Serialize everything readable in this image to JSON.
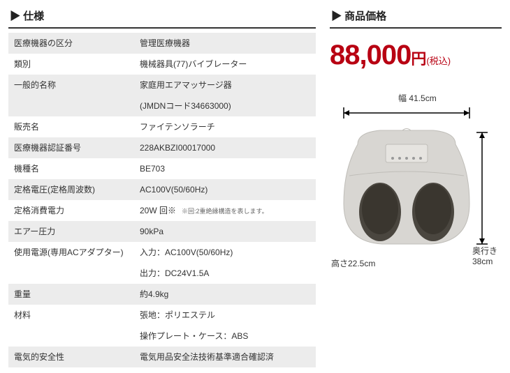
{
  "spec": {
    "header": "▶ 仕様",
    "rows": [
      {
        "label": "医療機器の区分",
        "value": "管理医療機器",
        "striped": true
      },
      {
        "label": "類別",
        "value": "機械器具(77)バイブレーター",
        "striped": false
      },
      {
        "label": "一般的名称",
        "value": "家庭用エアマッサージ器",
        "striped": true
      },
      {
        "label": "",
        "value": "(JMDNコード34663000)",
        "striped": true
      },
      {
        "label": "販売名",
        "value": "ファイテンソラーチ",
        "striped": false
      },
      {
        "label": "医療機器認証番号",
        "value": "228AKBZI00017000",
        "striped": true
      },
      {
        "label": "機種名",
        "value": "BE703",
        "striped": false
      },
      {
        "label": "定格電圧(定格周波数)",
        "value": "AC100V(50/60Hz)",
        "striped": true
      },
      {
        "label": "定格消費電力",
        "value": "20W 回※",
        "note": "※回:2重絶縁構造を表します。",
        "striped": false
      },
      {
        "label": "エアー圧力",
        "value": "90kPa",
        "striped": true
      },
      {
        "label": "使用電源(専用ACアダプター)",
        "value": "入力：AC100V(50/60Hz)",
        "striped": false
      },
      {
        "label": "",
        "value": "出力：DC24V1.5A",
        "striped": false
      },
      {
        "label": "重量",
        "value": "約4.9kg",
        "striped": true
      },
      {
        "label": "材料",
        "value": "張地：ポリエステル",
        "striped": false
      },
      {
        "label": "",
        "value": "操作プレート・ケース：ABS",
        "striped": false
      },
      {
        "label": "電気的安全性",
        "value": "電気用品安全法技術基準適合確認済",
        "striped": true
      }
    ]
  },
  "price": {
    "header": "▶ 商品価格",
    "amount": "88,000",
    "currency": "円",
    "tax_note": "(税込)"
  },
  "dimensions": {
    "width_label": "幅 41.5cm",
    "height_label": "高さ22.5cm",
    "depth_label_1": "奥行き",
    "depth_label_2": "38cm"
  },
  "colors": {
    "price": "#b80012",
    "stripe": "#ececec",
    "header_border": "#333333",
    "device_body": "#d8d6d2",
    "device_shadow": "#bfbdb8",
    "foot_hole": "#4a463f"
  }
}
